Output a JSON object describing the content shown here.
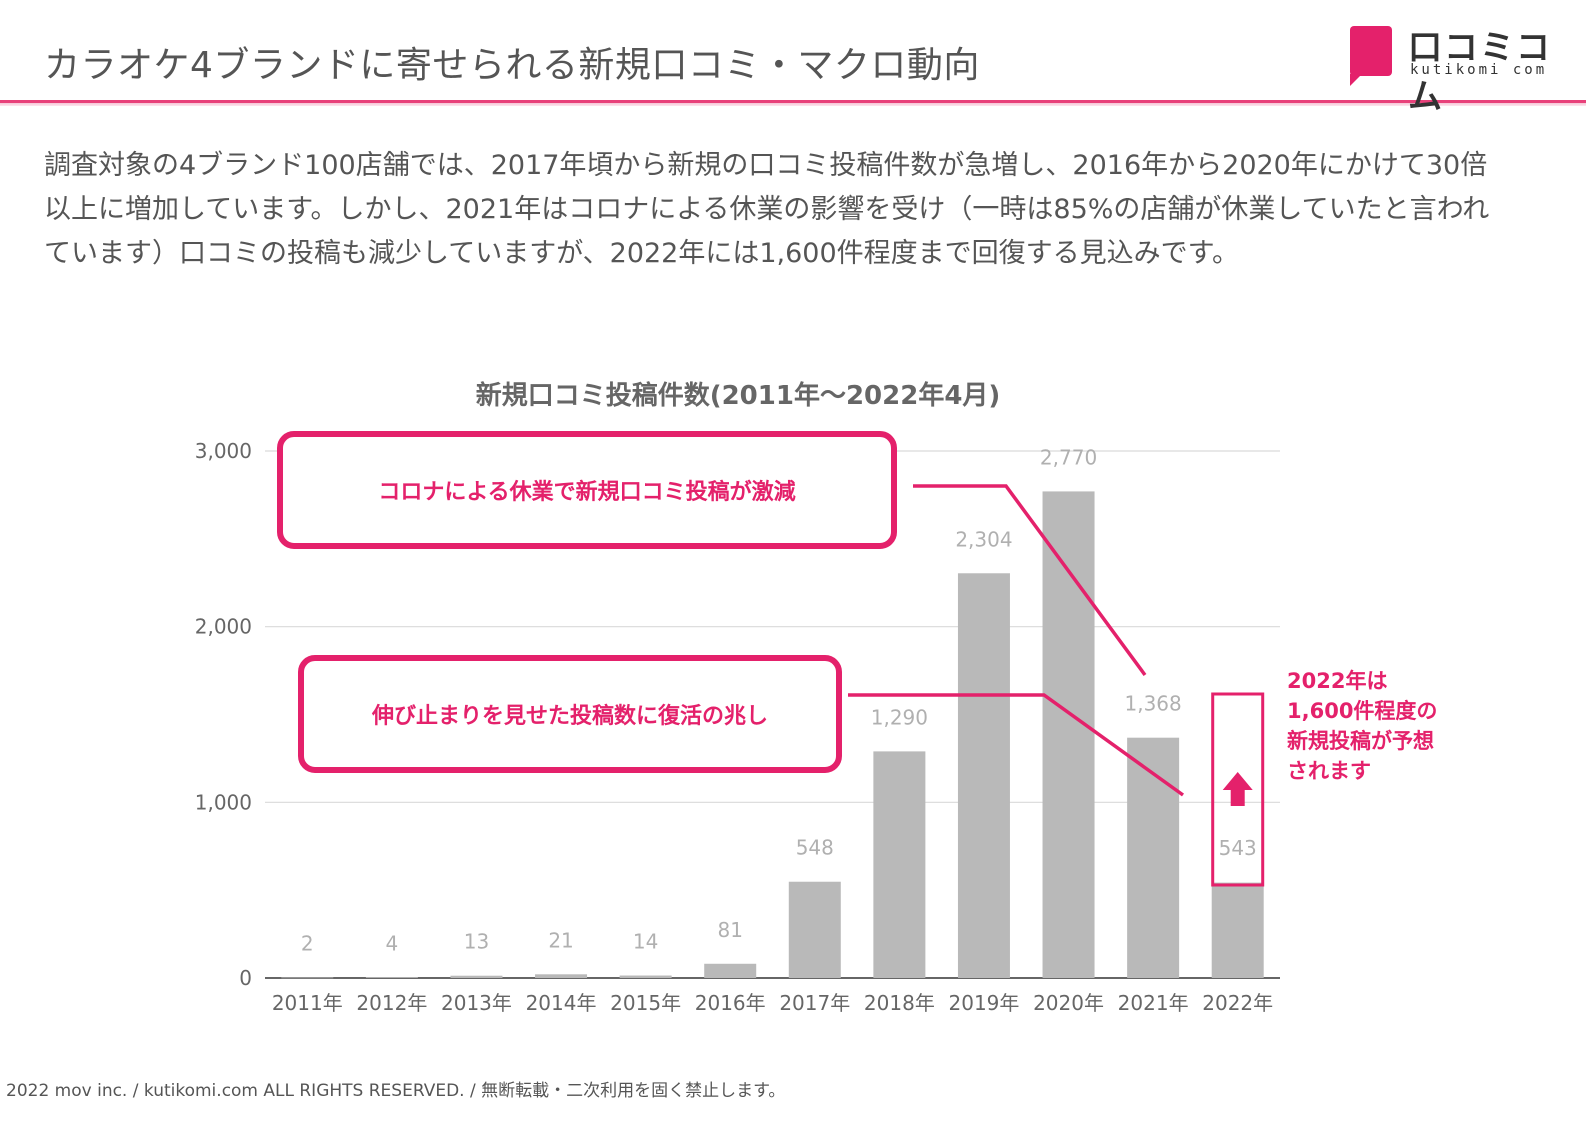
{
  "header": {
    "title": "カラオケ4ブランドに寄せられる新規口コミ・マクロ動向"
  },
  "logo": {
    "name": "口コミコム",
    "sub": "kutikomi com"
  },
  "intro": {
    "text": "調査対象の4ブランド100店舗では、2017年頃から新規の口コミ投稿件数が急増し、2016年から2020年にかけて30倍以上に増加しています。しかし、2021年はコロナによる休業の影響を受け（一時は85%の店舗が休業していたと言われています）口コミの投稿も減少していますが、2022年には1,600件程度まで回復する見込みです。"
  },
  "chart_data": {
    "type": "bar",
    "title": "新規口コミ投稿件数(2011年～2022年4月)",
    "categories": [
      "2011年",
      "2012年",
      "2013年",
      "2014年",
      "2015年",
      "2016年",
      "2017年",
      "2018年",
      "2019年",
      "2020年",
      "2021年",
      "2022年"
    ],
    "values": [
      2,
      4,
      13,
      21,
      14,
      81,
      548,
      1290,
      2304,
      2770,
      1368,
      543
    ],
    "value_labels": [
      "2",
      "4",
      "13",
      "21",
      "14",
      "81",
      "548",
      "1,290",
      "2,304",
      "2,770",
      "1,368",
      "543"
    ],
    "yticks": [
      {
        "value": 0,
        "label": "0"
      },
      {
        "value": 1000,
        "label": "1,000"
      },
      {
        "value": 2000,
        "label": "2,000"
      },
      {
        "value": 3000,
        "label": "3,000"
      }
    ],
    "ylim": [
      0,
      3000
    ],
    "xlabel": "",
    "ylabel": "",
    "grid": true,
    "bar_color": "#b9b9b9",
    "accent_color": "#e4216b",
    "annotations": [
      {
        "id": "callout-decline",
        "text": "コロナによる休業で新規口コミ投稿が激減"
      },
      {
        "id": "callout-plateau",
        "text": "伸び止まりを見せた投稿数に復活の兆し"
      }
    ],
    "forecast_note": [
      "2022年は",
      "1,600件程度の",
      "新規投稿が予想",
      "されます"
    ]
  },
  "footer": {
    "copyright": "2022 mov inc. / kutikomi.com ALL RIGHTS RESERVED. / 無断転載・二次利用を固く禁止します。"
  }
}
